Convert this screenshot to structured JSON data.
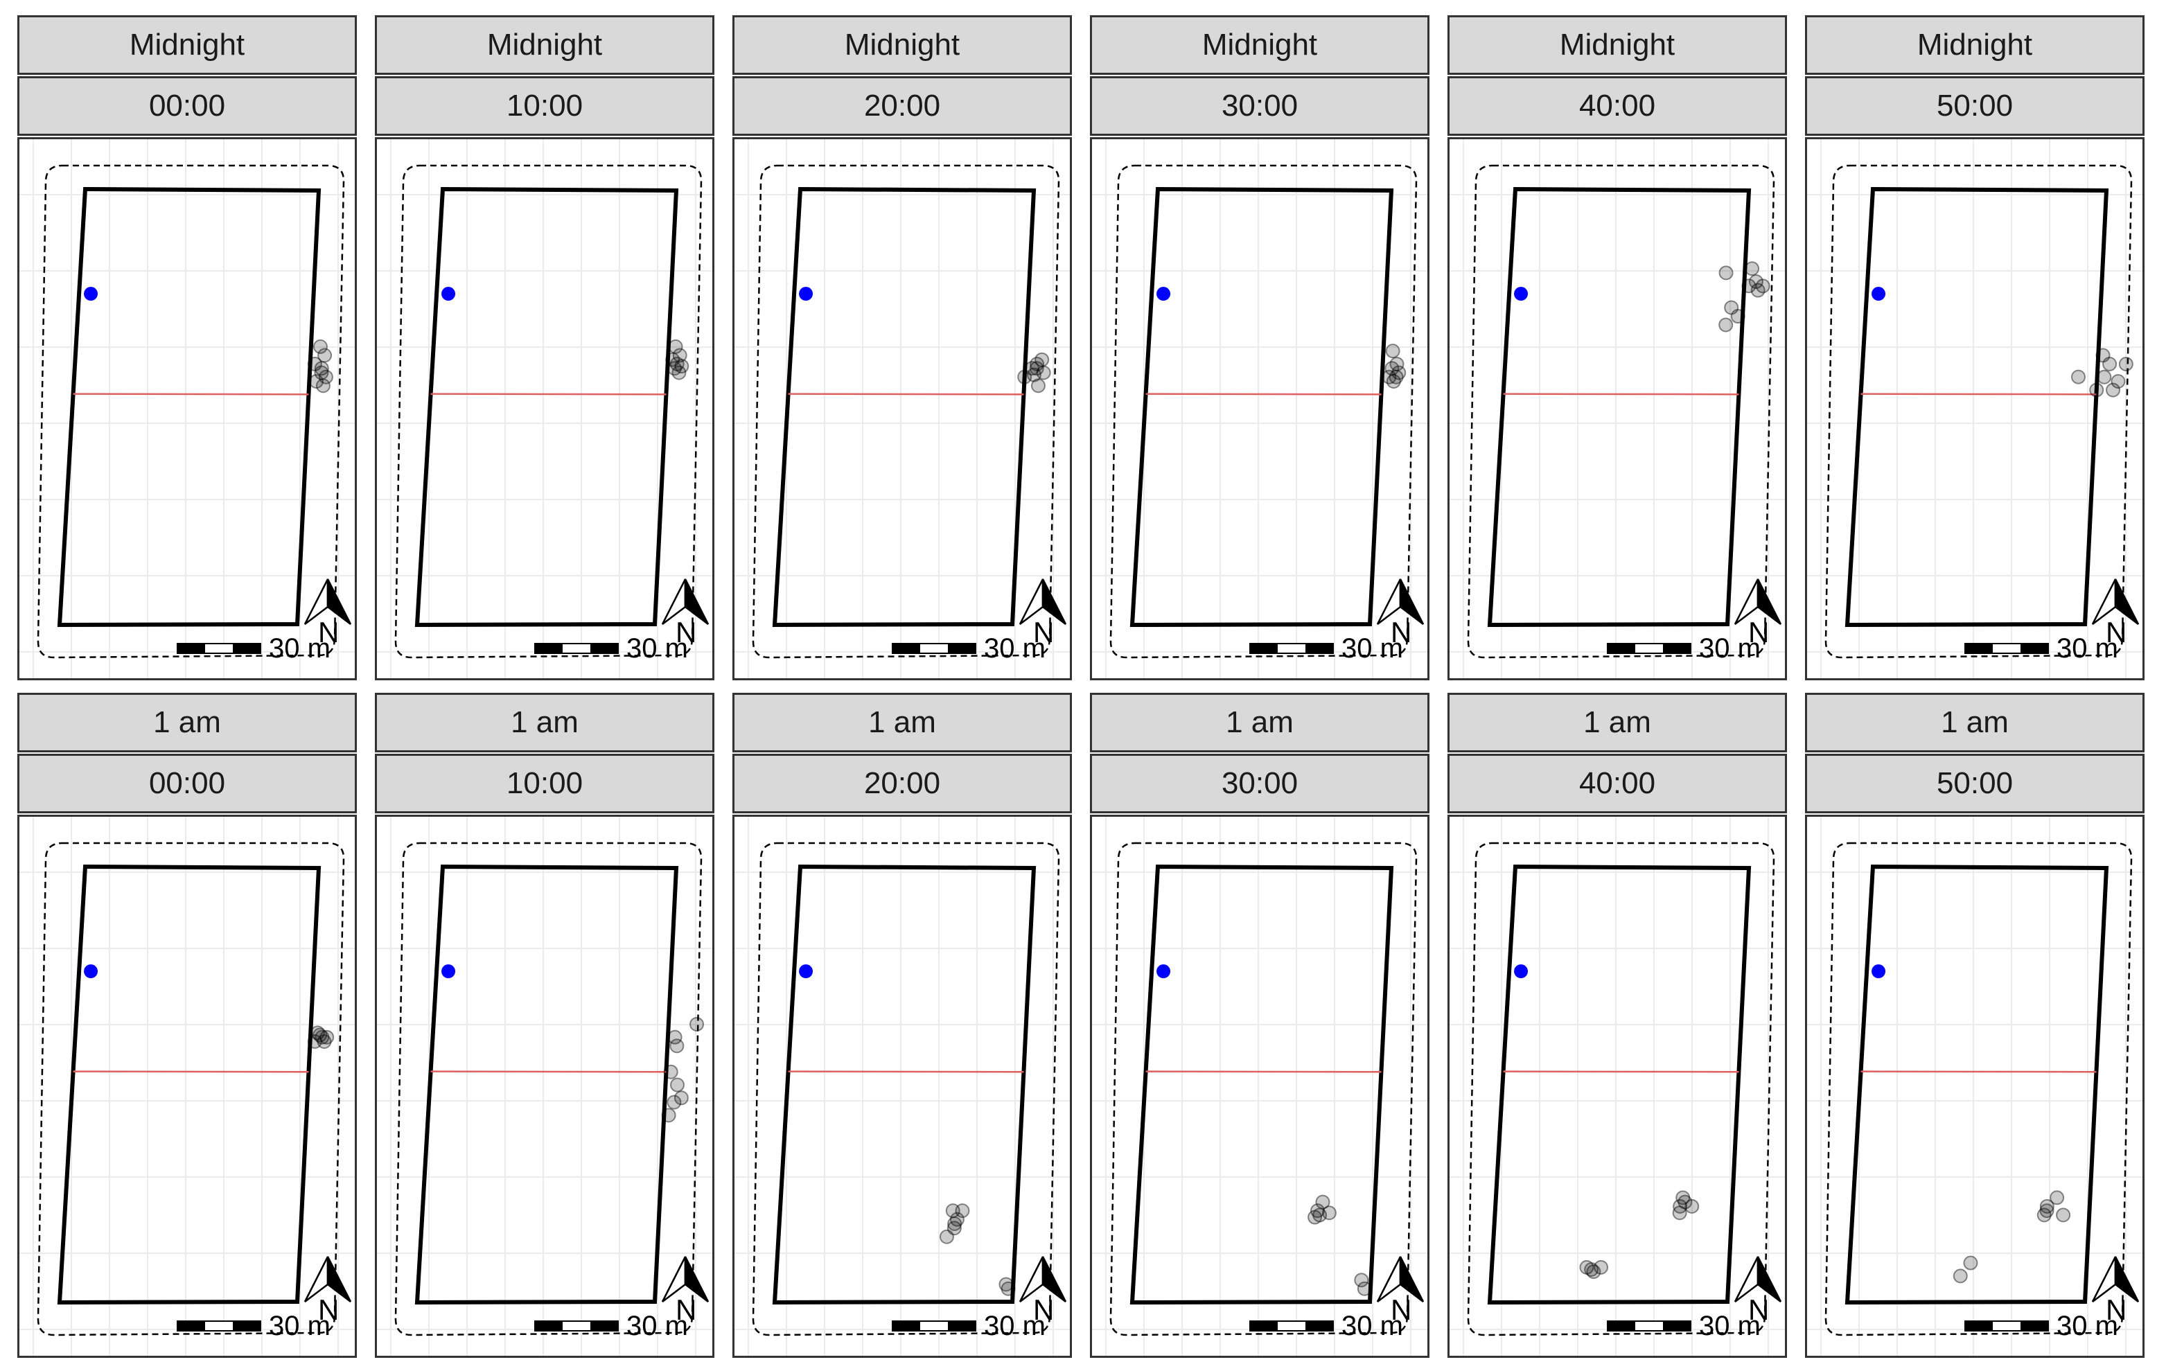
{
  "chart_data": {
    "type": "scatter",
    "title": "",
    "xlabel": "",
    "ylabel": "",
    "grid": true,
    "facet_rows": [
      "Midnight",
      "1 am"
    ],
    "facet_cols": [
      "00:00",
      "10:00",
      "20:00",
      "30:00",
      "40:00",
      "50:00"
    ],
    "coordinate_system": "x from 0 (west edge of field) to 10, y from 0 (south edge) to 10",
    "station": {
      "x": 0.5,
      "y": 7.6,
      "color": "#0000ff"
    },
    "divider_line": {
      "y": 5.3,
      "color": "#e06060"
    },
    "scale_bar": {
      "label": "30 m"
    },
    "north_arrow": {
      "label": "N"
    },
    "panels": [
      {
        "hour": "Midnight",
        "minute": "00:00",
        "points": [
          [
            10.4,
            6.4
          ],
          [
            10.6,
            6.2
          ],
          [
            10.2,
            6.0
          ],
          [
            10.5,
            5.9
          ],
          [
            10.7,
            5.7
          ],
          [
            10.3,
            5.6
          ],
          [
            10.6,
            5.5
          ],
          [
            10.5,
            5.8
          ]
        ]
      },
      {
        "hour": "Midnight",
        "minute": "10:00",
        "points": [
          [
            10.3,
            6.4
          ],
          [
            10.5,
            6.2
          ],
          [
            10.4,
            6.0
          ],
          [
            10.6,
            5.95
          ],
          [
            10.3,
            5.9
          ],
          [
            10.5,
            5.8
          ],
          [
            10.2,
            6.1
          ]
        ]
      },
      {
        "hour": "Midnight",
        "minute": "20:00",
        "points": [
          [
            10.3,
            5.9
          ],
          [
            10.5,
            6.0
          ],
          [
            10.7,
            6.1
          ],
          [
            10.4,
            5.75
          ],
          [
            10.6,
            5.5
          ],
          [
            10.0,
            5.7
          ],
          [
            10.8,
            5.8
          ],
          [
            10.5,
            5.9
          ]
        ]
      },
      {
        "hour": "Midnight",
        "minute": "30:00",
        "points": [
          [
            10.4,
            6.3
          ],
          [
            10.6,
            6.0
          ],
          [
            10.3,
            5.7
          ],
          [
            10.5,
            5.6
          ],
          [
            10.7,
            5.8
          ],
          [
            10.4,
            5.9
          ],
          [
            10.6,
            5.7
          ]
        ]
      },
      {
        "hour": "Midnight",
        "minute": "40:00",
        "points": [
          [
            9.2,
            8.1
          ],
          [
            10.3,
            8.2
          ],
          [
            10.6,
            7.7
          ],
          [
            10.2,
            7.8
          ],
          [
            10.8,
            7.8
          ],
          [
            9.5,
            7.3
          ],
          [
            9.8,
            7.1
          ],
          [
            9.3,
            6.9
          ],
          [
            10.5,
            7.9
          ]
        ]
      },
      {
        "hour": "Midnight",
        "minute": "50:00",
        "points": [
          [
            10.2,
            6.2
          ],
          [
            10.5,
            6.0
          ],
          [
            10.3,
            5.7
          ],
          [
            11.2,
            6.0
          ],
          [
            10.9,
            5.6
          ],
          [
            9.2,
            5.7
          ],
          [
            10.0,
            5.4
          ],
          [
            10.7,
            5.4
          ]
        ]
      },
      {
        "hour": "1 am",
        "minute": "00:00",
        "points": [
          [
            10.3,
            6.2
          ],
          [
            10.5,
            6.1
          ],
          [
            10.2,
            6.0
          ],
          [
            10.7,
            6.1
          ],
          [
            10.4,
            6.15
          ],
          [
            10.6,
            6.0
          ]
        ]
      },
      {
        "hour": "1 am",
        "minute": "10:00",
        "points": [
          [
            11.2,
            6.4
          ],
          [
            10.3,
            6.1
          ],
          [
            10.4,
            5.9
          ],
          [
            10.2,
            5.3
          ],
          [
            10.5,
            5.0
          ],
          [
            10.7,
            4.7
          ],
          [
            10.4,
            4.6
          ],
          [
            10.2,
            4.3
          ]
        ]
      },
      {
        "hour": "1 am",
        "minute": "20:00",
        "points": [
          [
            7.3,
            2.1
          ],
          [
            7.7,
            2.1
          ],
          [
            7.5,
            1.9
          ],
          [
            7.4,
            1.8
          ],
          [
            7.4,
            1.7
          ],
          [
            7.1,
            1.5
          ],
          [
            9.7,
            0.4
          ],
          [
            9.8,
            0.3
          ]
        ]
      },
      {
        "hour": "1 am",
        "minute": "30:00",
        "points": [
          [
            7.8,
            2.3
          ],
          [
            7.6,
            2.1
          ],
          [
            8.1,
            2.05
          ],
          [
            7.5,
            1.95
          ],
          [
            7.7,
            2.0
          ],
          [
            9.6,
            0.5
          ],
          [
            9.75,
            0.3
          ]
        ]
      },
      {
        "hour": "1 am",
        "minute": "40:00",
        "points": [
          [
            7.9,
            2.4
          ],
          [
            7.8,
            2.2
          ],
          [
            8.3,
            2.2
          ],
          [
            7.8,
            2.05
          ],
          [
            8.0,
            2.3
          ],
          [
            4.0,
            0.8
          ],
          [
            4.3,
            0.7
          ],
          [
            4.6,
            0.8
          ],
          [
            4.2,
            0.75
          ]
        ]
      },
      {
        "hour": "1 am",
        "minute": "50:00",
        "points": [
          [
            8.6,
            2.4
          ],
          [
            8.2,
            2.2
          ],
          [
            8.9,
            2.0
          ],
          [
            8.1,
            2.0
          ],
          [
            8.2,
            2.1
          ],
          [
            5.1,
            0.9
          ],
          [
            4.7,
            0.6
          ]
        ]
      }
    ]
  }
}
